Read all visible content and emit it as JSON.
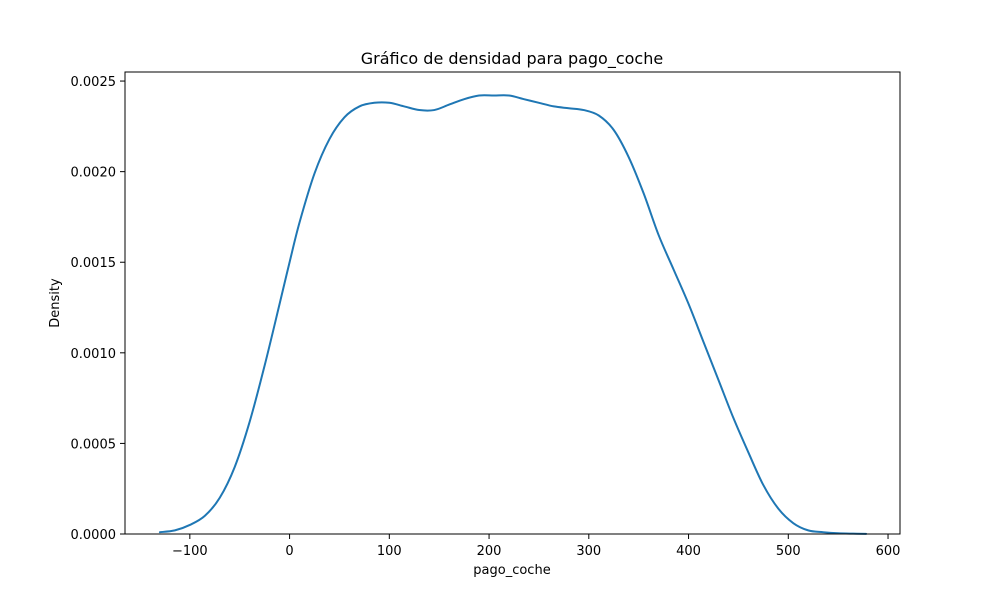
{
  "chart_data": {
    "type": "line",
    "title": "Gráfico de densidad para pago_coche",
    "xlabel": "pago_coche",
    "ylabel": "Density",
    "xlim": [
      -165,
      612
    ],
    "ylim": [
      0,
      0.00255
    ],
    "x_ticks": [
      -100,
      0,
      100,
      200,
      300,
      400,
      500,
      600
    ],
    "x_tick_labels": [
      "−100",
      "0",
      "100",
      "200",
      "300",
      "400",
      "500",
      "600"
    ],
    "y_ticks": [
      0,
      0.0005,
      0.001,
      0.0015,
      0.002,
      0.0025
    ],
    "y_tick_labels": [
      "0.0000",
      "0.0005",
      "0.0010",
      "0.0015",
      "0.0020",
      "0.0025"
    ],
    "grid": false,
    "line_color": "#1f77b4",
    "series": [
      {
        "x": [
          -130,
          -115,
          -100,
          -85,
          -70,
          -55,
          -40,
          -25,
          -10,
          0,
          10,
          25,
          40,
          55,
          70,
          85,
          100,
          115,
          130,
          145,
          160,
          175,
          190,
          205,
          220,
          235,
          250,
          265,
          280,
          295,
          310,
          325,
          340,
          355,
          370,
          385,
          400,
          415,
          430,
          445,
          460,
          475,
          490,
          505,
          520,
          535,
          550,
          565,
          578
        ],
        "y": [
          1e-05,
          2e-05,
          5e-05,
          0.0001,
          0.0002,
          0.00037,
          0.00062,
          0.00093,
          0.00127,
          0.0015,
          0.00172,
          0.00199,
          0.00218,
          0.0023,
          0.00236,
          0.00238,
          0.00238,
          0.00236,
          0.00234,
          0.00234,
          0.00237,
          0.0024,
          0.00242,
          0.00242,
          0.00242,
          0.0024,
          0.00238,
          0.00236,
          0.00235,
          0.00234,
          0.00231,
          0.00223,
          0.00208,
          0.00188,
          0.00165,
          0.00146,
          0.00127,
          0.00106,
          0.00085,
          0.00064,
          0.00045,
          0.00027,
          0.00014,
          6e-05,
          2e-05,
          1e-05,
          4e-06,
          2e-06,
          1e-06
        ]
      }
    ]
  }
}
